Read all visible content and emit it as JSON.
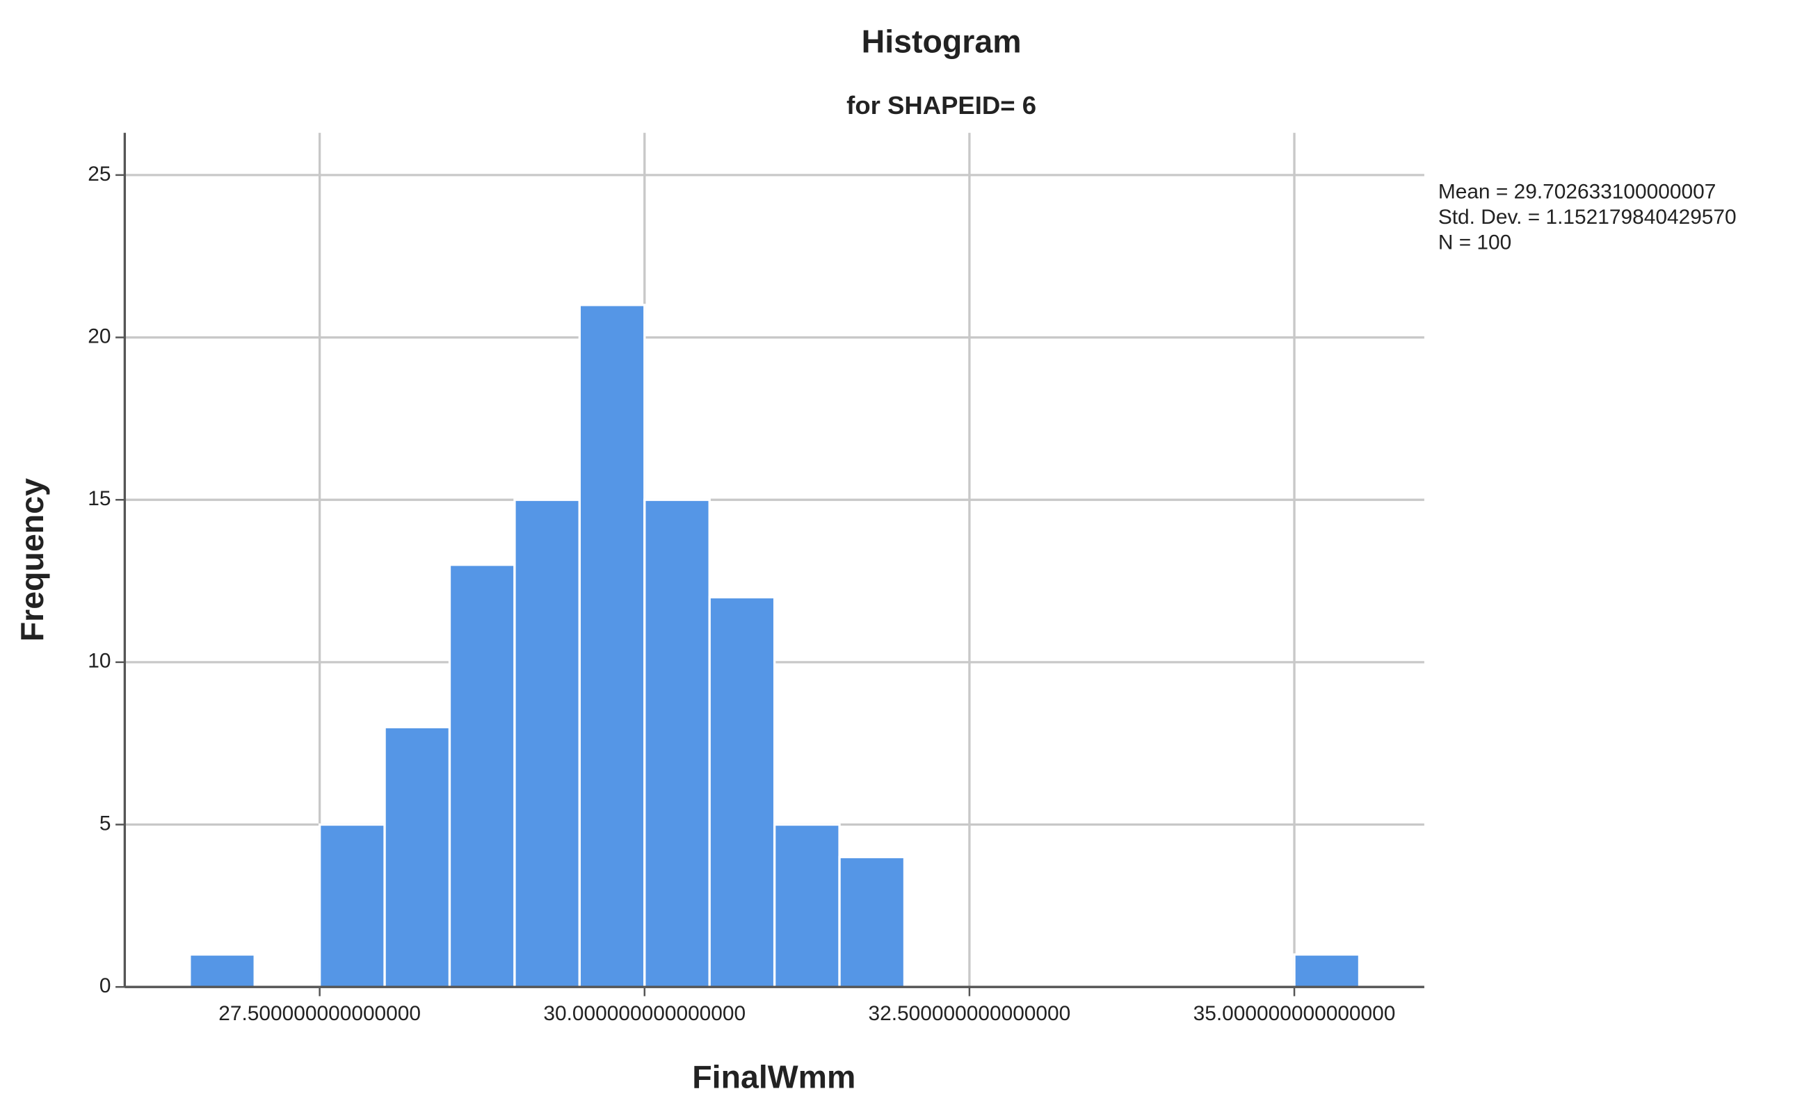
{
  "chart_data": {
    "type": "histogram",
    "title": "Histogram",
    "subtitle": "for SHAPEID= 6",
    "x_label": "FinalWmm",
    "y_label": "Frequency",
    "bins": [
      26.5,
      27,
      27.5,
      28,
      28.5,
      29,
      29.5,
      30,
      30.5,
      31,
      31.5,
      32,
      32.5,
      33,
      33.5,
      34,
      34.5,
      35,
      35.5
    ],
    "counts": [
      1,
      0,
      5,
      8,
      13,
      15,
      21,
      15,
      12,
      5,
      4,
      0,
      0,
      0,
      0,
      0,
      0,
      1
    ],
    "color": "#5596e6",
    "xlim": [
      26.0,
      36.0
    ],
    "ylim": [
      0,
      26.3
    ],
    "xticks": [
      {
        "value": 27.5,
        "label": "27.500000000000000"
      },
      {
        "value": 30,
        "label": "30.000000000000000"
      },
      {
        "value": 32.5,
        "label": "32.500000000000000"
      },
      {
        "value": 35,
        "label": "35.000000000000000"
      }
    ],
    "yticks": [
      0,
      5,
      10,
      15,
      20,
      25
    ],
    "grid": true,
    "stats": [
      "Mean = 29.702633100000007",
      "Std. Dev. = 1.152179840429570",
      "N = 100"
    ]
  }
}
